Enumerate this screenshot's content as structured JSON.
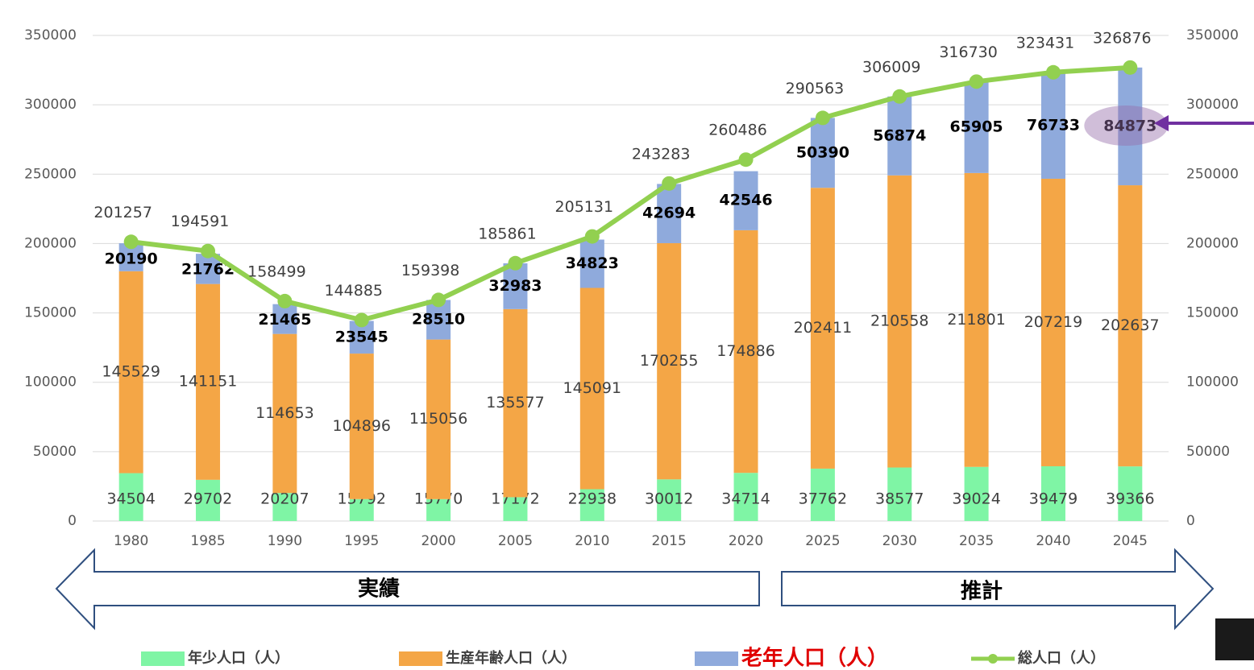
{
  "chart_data": {
    "type": "stacked-bar-line",
    "categories": [
      "1980",
      "1985",
      "1990",
      "1995",
      "2000",
      "2005",
      "2010",
      "2015",
      "2020",
      "2025",
      "2030",
      "2035",
      "2040",
      "2045"
    ],
    "series": [
      {
        "name": "年少人口（人）",
        "color": "#7ff5a5",
        "values": [
          34504,
          29702,
          20207,
          15792,
          15770,
          17172,
          22938,
          30012,
          34714,
          37762,
          38577,
          39024,
          39479,
          39366
        ]
      },
      {
        "name": "生産年齢人口（人）",
        "color": "#f4a646",
        "values": [
          145529,
          141151,
          114653,
          104896,
          115056,
          135577,
          145091,
          170255,
          174886,
          202411,
          210558,
          211801,
          207219,
          202637
        ]
      },
      {
        "name": "老年人口（人）",
        "color": "#8faadc",
        "values": [
          20190,
          21762,
          21465,
          23545,
          28510,
          32983,
          34823,
          42694,
          42546,
          50390,
          56874,
          65905,
          76733,
          84873
        ]
      },
      {
        "name": "総人口（人）",
        "color": "#92d050",
        "axis": "y2",
        "values": [
          201257,
          194591,
          158499,
          144885,
          159398,
          185861,
          205131,
          243283,
          260486,
          290563,
          306009,
          316730,
          323431,
          326876
        ]
      }
    ],
    "ylim": [
      0,
      350000
    ],
    "yticks": [
      0,
      50000,
      100000,
      150000,
      200000,
      250000,
      300000,
      350000
    ],
    "y2lim": [
      0,
      350000
    ],
    "y2ticks": [
      0,
      50000,
      100000,
      150000,
      200000,
      250000,
      300000,
      350000
    ],
    "grid": true,
    "legend": "bottom",
    "annotations": [
      "実績",
      "推計"
    ]
  }
}
